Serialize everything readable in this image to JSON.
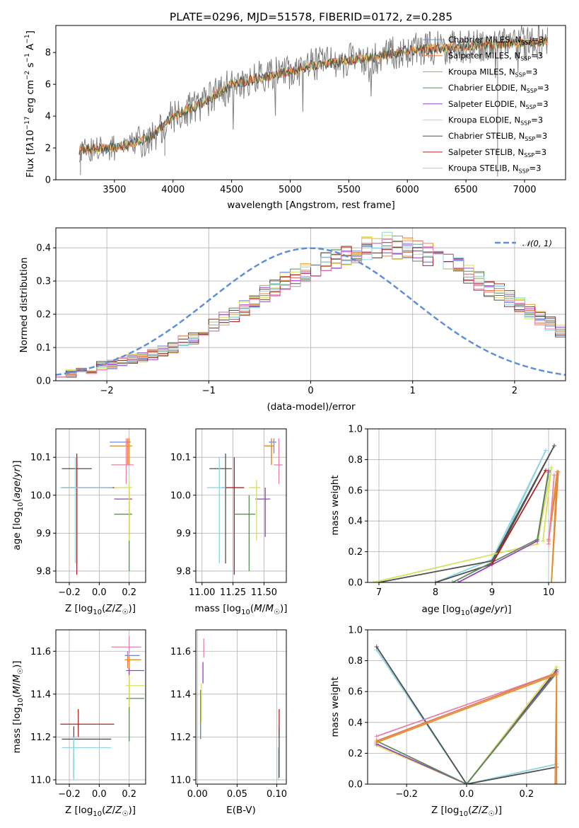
{
  "colors": {
    "Chabrier MILES": "#6d8fd8",
    "Salpeter MILES": "#e47a4a",
    "Kroupa MILES": "#e0922a",
    "Chabrier ELODIE": "#5b8a5b",
    "Salpeter ELODIE": "#9b40c0",
    "Kroupa ELODIE": "#d8e060",
    "Chabrier STELIB": "#505050",
    "Salpeter STELIB": "#b02020",
    "Kroupa STELIB": "#8fd6e0",
    "pink": "#e880b0",
    "normal_curve": "#5e8fd8",
    "observed": "#808080"
  },
  "chart_data": [
    {
      "id": "spectrum",
      "type": "line",
      "title": "PLATE=0296, MJD=51578, FIBERID=0172, z=0.285",
      "xlabel": "wavelength [Angstrom, rest frame]",
      "ylabel": "Flux [f_λ 10^-17 erg cm^-2 s^-1 A^-1]",
      "xlim": [
        3000,
        7350
      ],
      "ylim": [
        0,
        9.7
      ],
      "xticks": [
        3500,
        4000,
        4500,
        5000,
        5500,
        6000,
        6500,
        7000
      ],
      "yticks": [
        0,
        2,
        4,
        6,
        8
      ],
      "legend": [
        "Chabrier MILES, N_SSP=3",
        "Salpeter MILES, N_SSP=3",
        "Kroupa MILES, N_SSP=3",
        "Chabrier ELODIE, N_SSP=3",
        "Salpeter ELODIE, N_SSP=3",
        "Kroupa ELODIE, N_SSP=3",
        "Chabrier STELIB, N_SSP=3",
        "Salpeter STELIB, N_SSP=3",
        "Kroupa STELIB, N_SSP=3"
      ],
      "legend_position": "right",
      "continuum": {
        "x": [
          3200,
          3500,
          3800,
          4000,
          4300,
          4500,
          4800,
          5000,
          5200,
          5500,
          5800,
          6000,
          6300,
          6500,
          7000,
          7200
        ],
        "y": [
          1.9,
          2.0,
          2.6,
          4.0,
          5.0,
          6.0,
          6.5,
          6.8,
          7.2,
          7.5,
          7.8,
          8.1,
          8.3,
          8.4,
          8.6,
          8.7
        ]
      }
    },
    {
      "id": "residuals",
      "type": "line",
      "xlabel": "(data-model)/error",
      "ylabel": "Normed distribution",
      "xlim": [
        -2.5,
        2.5
      ],
      "ylim": [
        0,
        0.46
      ],
      "xticks": [
        -2,
        -1,
        0,
        1,
        2
      ],
      "yticks": [
        0.0,
        0.1,
        0.2,
        0.3,
        0.4
      ],
      "legend": [
        "𝒩(0, 1)"
      ],
      "normal_curve": {
        "mu": 0,
        "sigma": 1
      },
      "histogram_edges_start": -2.5,
      "histogram_bin_width": 0.1,
      "histogram_base": [
        0.025,
        0.02,
        0.03,
        0.035,
        0.045,
        0.05,
        0.055,
        0.065,
        0.07,
        0.08,
        0.09,
        0.1,
        0.12,
        0.13,
        0.155,
        0.17,
        0.19,
        0.2,
        0.22,
        0.24,
        0.26,
        0.28,
        0.3,
        0.31,
        0.33,
        0.34,
        0.36,
        0.37,
        0.38,
        0.39,
        0.4,
        0.405,
        0.41,
        0.4,
        0.4,
        0.39,
        0.38,
        0.37,
        0.35,
        0.34,
        0.32,
        0.3,
        0.28,
        0.27,
        0.25,
        0.23,
        0.21,
        0.19,
        0.17,
        0.15
      ]
    },
    {
      "id": "age-vs-Z",
      "type": "scatter",
      "xlabel": "Z [log10(Z/Z☉)]",
      "ylabel": "age [log10(age/yr)]",
      "xlim": [
        -0.29,
        0.31
      ],
      "ylim": [
        9.77,
        10.175
      ],
      "xticks": [
        -0.2,
        0.0,
        0.2
      ],
      "yticks": [
        9.8,
        9.9,
        10.0,
        10.1
      ],
      "points": [
        {
          "model": "Chabrier STELIB",
          "x": -0.15,
          "xerr": [
            0.1,
            0.1
          ],
          "y": 10.07,
          "yerr": [
            0.25,
            0.04
          ]
        },
        {
          "model": "Salpeter STELIB",
          "x": -0.15,
          "xerr": [
            0.1,
            0.25
          ],
          "y": 10.02,
          "yerr": [
            0.23,
            0.08
          ]
        },
        {
          "model": "Kroupa STELIB",
          "x": -0.16,
          "xerr": [
            0.1,
            0.25
          ],
          "y": 10.02,
          "yerr": [
            0.2,
            0.08
          ]
        },
        {
          "model": "Chabrier ELODIE",
          "x": 0.2,
          "xerr": [
            0.1,
            0.02
          ],
          "y": 9.95,
          "yerr": [
            0.15,
            0.05
          ]
        },
        {
          "model": "Salpeter ELODIE",
          "x": 0.2,
          "xerr": [
            0.1,
            0.02
          ],
          "y": 9.99,
          "yerr": [
            0.1,
            0.03
          ]
        },
        {
          "model": "Kroupa ELODIE",
          "x": 0.2,
          "xerr": [
            0.1,
            0.02
          ],
          "y": 10.02,
          "yerr": [
            0.14,
            0.02
          ]
        },
        {
          "model": "Chabrier MILES",
          "x": 0.19,
          "xerr": [
            0.12,
            0.02
          ],
          "y": 10.14,
          "yerr": [
            0.03,
            0.01
          ]
        },
        {
          "model": "Salpeter MILES",
          "x": 0.19,
          "xerr": [
            0.12,
            0.02
          ],
          "y": 10.13,
          "yerr": [
            0.05,
            0.02
          ]
        },
        {
          "model": "Kroupa MILES",
          "x": 0.2,
          "xerr": [
            0.13,
            0.02
          ],
          "y": 10.13,
          "yerr": [
            0.05,
            0.02
          ]
        },
        {
          "model": "pink",
          "x": 0.18,
          "xerr": [
            0.1,
            0.05
          ],
          "y": 10.08,
          "yerr": [
            0.05,
            0.07
          ]
        }
      ]
    },
    {
      "id": "age-vs-mass",
      "type": "scatter",
      "xlabel": "mass [log10(M/M☉)]",
      "ylabel": "",
      "xlim": [
        10.95,
        11.68
      ],
      "ylim": [
        9.77,
        10.175
      ],
      "xticks": [
        11.0,
        11.25,
        11.5
      ],
      "tick_labels": [
        "11.00",
        "11.25",
        "11.50"
      ],
      "yticks": [
        9.8,
        9.9,
        10.0,
        10.1
      ],
      "points": [
        {
          "model": "Chabrier STELIB",
          "x": 11.19,
          "xerr": [
            0.13,
            0.05
          ],
          "y": 10.07,
          "yerr": [
            0.25,
            0.04
          ]
        },
        {
          "model": "Salpeter STELIB",
          "x": 11.26,
          "xerr": [
            0.1,
            0.08
          ],
          "y": 10.02,
          "yerr": [
            0.23,
            0.08
          ]
        },
        {
          "model": "Kroupa STELIB",
          "x": 11.14,
          "xerr": [
            0.1,
            0.05
          ],
          "y": 10.02,
          "yerr": [
            0.2,
            0.08
          ]
        },
        {
          "model": "Chabrier ELODIE",
          "x": 11.38,
          "xerr": [
            0.12,
            0.05
          ],
          "y": 9.95,
          "yerr": [
            0.15,
            0.05
          ]
        },
        {
          "model": "Salpeter ELODIE",
          "x": 11.51,
          "xerr": [
            0.08,
            0.04
          ],
          "y": 9.99,
          "yerr": [
            0.1,
            0.03
          ]
        },
        {
          "model": "Kroupa ELODIE",
          "x": 11.44,
          "xerr": [
            0.06,
            0.03
          ],
          "y": 10.02,
          "yerr": [
            0.14,
            0.02
          ]
        },
        {
          "model": "Chabrier MILES",
          "x": 11.58,
          "xerr": [
            0.04,
            0.02
          ],
          "y": 10.14,
          "yerr": [
            0.03,
            0.01
          ]
        },
        {
          "model": "Salpeter MILES",
          "x": 11.56,
          "xerr": [
            0.05,
            0.02
          ],
          "y": 10.13,
          "yerr": [
            0.05,
            0.02
          ]
        },
        {
          "model": "Kroupa MILES",
          "x": 11.56,
          "xerr": [
            0.06,
            0.02
          ],
          "y": 10.13,
          "yerr": [
            0.05,
            0.02
          ]
        },
        {
          "model": "pink",
          "x": 11.62,
          "xerr": [
            0.04,
            0.03
          ],
          "y": 10.08,
          "yerr": [
            0.05,
            0.07
          ]
        }
      ]
    },
    {
      "id": "mass-weight-vs-age",
      "type": "line",
      "xlabel": "age [log10(age/yr)]",
      "ylabel": "mass weight",
      "xlim": [
        6.8,
        10.3
      ],
      "ylim": [
        0,
        1.0
      ],
      "xticks": [
        7,
        8,
        9,
        10
      ],
      "yticks": [
        0.0,
        0.2,
        0.4,
        0.6,
        0.8,
        1.0
      ]
    },
    {
      "id": "mass-vs-Z",
      "type": "scatter",
      "xlabel": "Z [log10(Z/Z☉)]",
      "ylabel": "mass [log10(M/M☉)]",
      "xlim": [
        -0.29,
        0.31
      ],
      "ylim": [
        10.98,
        11.7
      ],
      "xticks": [
        -0.2,
        0.0,
        0.2
      ],
      "yticks": [
        11.0,
        11.2,
        11.4,
        11.6
      ],
      "points": [
        {
          "model": "Chabrier STELIB",
          "x": -0.17,
          "xerr": [
            0.08,
            0.25
          ],
          "y": 11.19,
          "yerr": [
            0.18,
            0.06
          ]
        },
        {
          "model": "Salpeter STELIB",
          "x": -0.14,
          "xerr": [
            0.12,
            0.24
          ],
          "y": 11.26,
          "yerr": [
            0.06,
            0.07
          ]
        },
        {
          "model": "Kroupa STELIB",
          "x": -0.17,
          "xerr": [
            0.08,
            0.25
          ],
          "y": 11.15,
          "yerr": [
            0.15,
            0.05
          ]
        },
        {
          "model": "Chabrier ELODIE",
          "x": 0.2,
          "xerr": [
            0.02,
            0.1
          ],
          "y": 11.38,
          "yerr": [
            0.2,
            0.05
          ]
        },
        {
          "model": "Salpeter ELODIE",
          "x": 0.2,
          "xerr": [
            0.02,
            0.1
          ],
          "y": 11.51,
          "yerr": [
            0.1,
            0.05
          ]
        },
        {
          "model": "Kroupa ELODIE",
          "x": 0.2,
          "xerr": [
            0.02,
            0.1
          ],
          "y": 11.44,
          "yerr": [
            0.1,
            0.05
          ]
        },
        {
          "model": "Chabrier MILES",
          "x": 0.19,
          "xerr": [
            0.02,
            0.08
          ],
          "y": 11.58,
          "yerr": [
            0.03,
            0.02
          ]
        },
        {
          "model": "Salpeter MILES",
          "x": 0.19,
          "xerr": [
            0.02,
            0.08
          ],
          "y": 11.56,
          "yerr": [
            0.04,
            0.02
          ]
        },
        {
          "model": "Kroupa MILES",
          "x": 0.2,
          "xerr": [
            0.02,
            0.08
          ],
          "y": 11.56,
          "yerr": [
            0.04,
            0.02
          ]
        },
        {
          "model": "pink",
          "x": 0.2,
          "xerr": [
            0.12,
            0.08
          ],
          "y": 11.62,
          "yerr": [
            0.03,
            0.05
          ]
        }
      ]
    },
    {
      "id": "mass-vs-EBV",
      "type": "scatter",
      "xlabel": "E(B-V)",
      "ylabel": "",
      "xlim": [
        -0.002,
        0.112
      ],
      "ylim": [
        10.98,
        11.7
      ],
      "xticks": [
        0.0,
        0.05,
        0.1
      ],
      "tick_labels": [
        "0.00",
        "0.05",
        "0.10"
      ],
      "yticks": [
        11.0,
        11.2,
        11.4,
        11.6
      ],
      "points": [
        {
          "model": "Chabrier ELODIE",
          "x": 0.004,
          "y": 11.32,
          "yerr": [
            0.13,
            0.1
          ]
        },
        {
          "model": "Kroupa ELODIE",
          "x": 0.005,
          "y": 11.37,
          "yerr": [
            0.1,
            0.08
          ]
        },
        {
          "model": "Salpeter ELODIE",
          "x": 0.007,
          "y": 11.5,
          "yerr": [
            0.05,
            0.05
          ]
        },
        {
          "model": "pink",
          "x": 0.008,
          "y": 11.6,
          "yerr": [
            0.03,
            0.06
          ]
        },
        {
          "model": "Salpeter STELIB",
          "x": 0.103,
          "y": 11.26,
          "yerr": [
            0.06,
            0.07
          ]
        },
        {
          "model": "Kroupa STELIB",
          "x": 0.102,
          "y": 11.1,
          "yerr": [
            0.1,
            0.05
          ]
        },
        {
          "model": "Chabrier STELIB",
          "x": 0.103,
          "y": 11.19,
          "yerr": [
            0.18,
            0.05
          ]
        }
      ]
    },
    {
      "id": "mass-weight-vs-Z",
      "type": "line",
      "xlabel": "Z [log10(Z/Z☉)]",
      "ylabel": "mass weight",
      "xlim": [
        -0.33,
        0.33
      ],
      "ylim": [
        0,
        1.0
      ],
      "xticks": [
        -0.2,
        0.0,
        0.2
      ],
      "yticks": [
        0.0,
        0.2,
        0.4,
        0.6,
        0.8,
        1.0
      ]
    }
  ]
}
